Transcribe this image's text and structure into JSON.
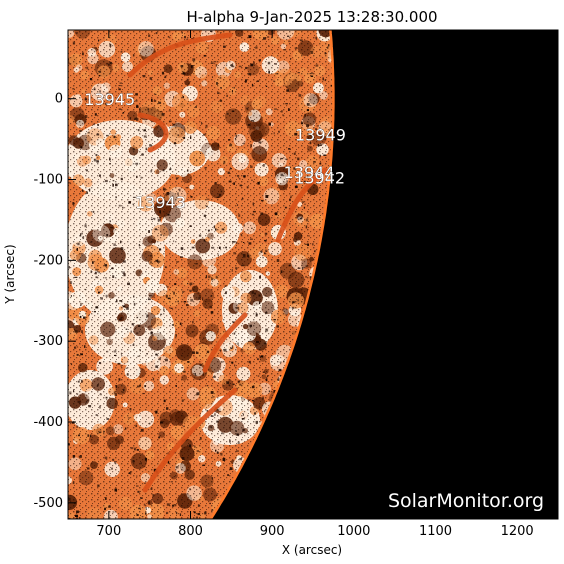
{
  "chart_data": {
    "type": "heatmap",
    "title": "H-alpha  9-Jan-2025 13:28:30.000",
    "xlabel": "X (arcsec)",
    "ylabel": "Y (arcsec)",
    "xlim": [
      650,
      1250
    ],
    "ylim": [
      -520,
      85
    ],
    "x_ticks": [
      700,
      800,
      900,
      1000,
      1100,
      1200
    ],
    "y_ticks": [
      0,
      -100,
      -200,
      -300,
      -400,
      -500
    ],
    "colors": {
      "disk_bright": "#fff3e4",
      "disk_mid": "#f0803a",
      "disk_dark": "#3a1402",
      "off_limb": "#000000"
    },
    "limb": {
      "radius_arcsec": 975
    },
    "regions": [
      {
        "label": "13945",
        "x": 670,
        "y": -8
      },
      {
        "label": "13949",
        "x": 928,
        "y": -52
      },
      {
        "label": "13944",
        "x": 914,
        "y": -98
      },
      {
        "label": "13942",
        "x": 927,
        "y": -105
      },
      {
        "label": "13943",
        "x": 732,
        "y": -135
      }
    ],
    "watermark": "SolarMonitor.org"
  }
}
